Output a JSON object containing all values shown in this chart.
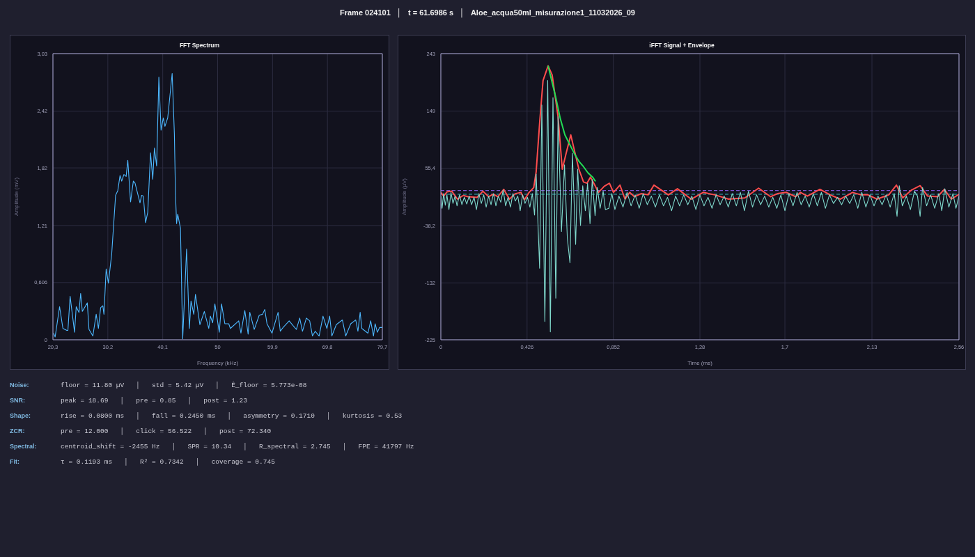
{
  "chart_data": [
    {
      "type": "other",
      "title": "Frame 024101   │   t = 61.6986 s   │   Aloe_acqua50ml_misurazione1_11032026_09"
    },
    {
      "type": "line",
      "title": "FFT Spectrum",
      "xlabel": "Frequency (kHz)",
      "ylabel": "Amplitude (mV)",
      "color": "#4db8ff",
      "marker": "none",
      "grid": true,
      "xlim": [
        20.3,
        79.7
      ],
      "xticks": [
        {
          "value": 20.3,
          "label": "20,3"
        },
        {
          "value": 30.2,
          "label": "30,2"
        },
        {
          "value": 40.1,
          "label": "40,1"
        },
        50,
        {
          "value": 59.9,
          "label": "59,9"
        },
        {
          "value": 69.8,
          "label": "69,8"
        },
        {
          "value": 79.7,
          "label": "79,7"
        }
      ],
      "ylim": [
        0,
        3.03
      ],
      "yticks": [
        0,
        {
          "value": 0.606,
          "label": "0,606"
        },
        {
          "value": 1.21,
          "label": "1,21"
        },
        {
          "value": 1.82,
          "label": "1,82"
        },
        {
          "value": 2.42,
          "label": "2,42"
        },
        {
          "value": 3.03,
          "label": "3,03"
        }
      ],
      "x": [
        20.4,
        20.7,
        21.5,
        22.1,
        22.8,
        23.0,
        23.4,
        24.2,
        24.5,
        25.0,
        25.3,
        25.6,
        26.5,
        26.8,
        27.5,
        28.1,
        28.5,
        28.9,
        29.3,
        29.5,
        29.9,
        30.3,
        30.9,
        31.6,
        32.0,
        32.4,
        32.7,
        33.1,
        33.5,
        33.8,
        34.3,
        34.8,
        35.1,
        36.0,
        36.3,
        36.6,
        37.0,
        37.4,
        37.9,
        38.3,
        38.6,
        39.0,
        39.4,
        39.8,
        40.2,
        40.5,
        41.0,
        41.8,
        42.2,
        42.4,
        42.6,
        42.8,
        43.3,
        43.7,
        44.0,
        44.4,
        44.9,
        45.2,
        45.7,
        46.0,
        46.8,
        47.6,
        48.4,
        48.7,
        49.1,
        49.5,
        50.3,
        50.7,
        51.3,
        52.0,
        52.3,
        53.8,
        54.2,
        54.9,
        55.5,
        55.8,
        56.6,
        57.5,
        58.1,
        58.5,
        58.9,
        59.8,
        60.9,
        61.3,
        61.8,
        62.9,
        63.6,
        64.2,
        64.8,
        65.3,
        66.0,
        66.6,
        67.1,
        67.6,
        68.3,
        69.0,
        69.7,
        70.2,
        70.6,
        71.4,
        72.5,
        73.1,
        74.0,
        74.9,
        75.3,
        75.7,
        76.0,
        77.1,
        77.6,
        78.1,
        78.4,
        78.8,
        79.2,
        79.7
      ],
      "values": [
        0.07,
        0.03,
        0.35,
        0.12,
        0.1,
        0.1,
        0.46,
        0.08,
        0.35,
        0.29,
        0.49,
        0.3,
        0.39,
        0.11,
        0.04,
        0.27,
        0.12,
        0.34,
        0.36,
        0.27,
        0.75,
        0.6,
        0.91,
        1.53,
        1.58,
        1.74,
        1.68,
        1.75,
        1.73,
        1.9,
        1.46,
        1.68,
        1.66,
        1.45,
        1.53,
        1.52,
        1.24,
        1.35,
        1.98,
        1.7,
        2.03,
        1.84,
        2.78,
        2.22,
        2.35,
        2.26,
        2.35,
        2.82,
        2.18,
        1.54,
        1.23,
        1.33,
        1.18,
        0.01,
        0.41,
        0.96,
        0.12,
        0.41,
        0.27,
        0.48,
        0.16,
        0.3,
        0.12,
        0.25,
        0.18,
        0.38,
        0.08,
        0.38,
        0.17,
        0.17,
        0.12,
        0.2,
        0.07,
        0.31,
        0.06,
        0.29,
        0.11,
        0.26,
        0.27,
        0.32,
        0.17,
        0.07,
        0.29,
        0.09,
        0.13,
        0.2,
        0.15,
        0.11,
        0.23,
        0.09,
        0.23,
        0.2,
        0.04,
        0.09,
        0.04,
        0.25,
        0.12,
        0.25,
        0.04,
        0.16,
        0.21,
        0.04,
        0.17,
        0.21,
        0.09,
        0.29,
        0.12,
        0.07,
        0.2,
        0.04,
        0.17,
        0.08,
        0.13,
        0.13
      ]
    },
    {
      "type": "line",
      "title": "iFFT Signal + Envelope",
      "xlabel": "Time (ms)",
      "ylabel": "Amplitude (µV)",
      "marker": "none",
      "grid": true,
      "xlim": [
        0,
        2.56
      ],
      "xticks": [
        0,
        {
          "value": 0.426,
          "label": "0,426"
        },
        {
          "value": 0.852,
          "label": "0,852"
        },
        {
          "value": 1.28,
          "label": "1,28"
        },
        {
          "value": 1.7,
          "label": "1,7"
        },
        {
          "value": 2.13,
          "label": "2,13"
        },
        {
          "value": 2.56,
          "label": "2,56"
        }
      ],
      "ylim": [
        -225,
        243
      ],
      "yticks": [
        -225,
        -132,
        {
          "value": -38.2,
          "label": "-38,2"
        },
        {
          "value": 55.4,
          "label": "55,4"
        },
        149,
        243
      ],
      "ref_lines": [
        {
          "axis": "y",
          "value": 19,
          "color": "#9966ff",
          "line_style": "dashed"
        },
        {
          "axis": "y",
          "value": 13,
          "color": "#33bbbb",
          "line_style": "dashed"
        }
      ],
      "series": [
        {
          "color": "#7fd8cc",
          "x": [
            0,
            0.006,
            0.014,
            0.022,
            0.03,
            0.04,
            0.05,
            0.06,
            0.07,
            0.08,
            0.092,
            0.104,
            0.116,
            0.128,
            0.14,
            0.152,
            0.164,
            0.176,
            0.188,
            0.2,
            0.212,
            0.224,
            0.236,
            0.248,
            0.26,
            0.272,
            0.284,
            0.296,
            0.308,
            0.32,
            0.332,
            0.344,
            0.356,
            0.368,
            0.38,
            0.392,
            0.404,
            0.416,
            0.428,
            0.44,
            0.452,
            0.463,
            0.471,
            0.488,
            0.499,
            0.514,
            0.528,
            0.541,
            0.554,
            0.568,
            0.579,
            0.596,
            0.611,
            0.625,
            0.638,
            0.65,
            0.666,
            0.676,
            0.69,
            0.701,
            0.714,
            0.725,
            0.737,
            0.748,
            0.762,
            0.773,
            0.787,
            0.802,
            0.813,
            0.83,
            0.845,
            0.86,
            0.88,
            0.9,
            0.92,
            0.94,
            0.96,
            0.98,
            1.0,
            1.02,
            1.04,
            1.06,
            1.08,
            1.1,
            1.12,
            1.14,
            1.16,
            1.18,
            1.2,
            1.22,
            1.24,
            1.26,
            1.28,
            1.3,
            1.32,
            1.34,
            1.36,
            1.38,
            1.4,
            1.42,
            1.44,
            1.46,
            1.48,
            1.5,
            1.52,
            1.54,
            1.56,
            1.58,
            1.6,
            1.62,
            1.64,
            1.66,
            1.68,
            1.7,
            1.72,
            1.74,
            1.76,
            1.78,
            1.8,
            1.82,
            1.84,
            1.86,
            1.88,
            1.9,
            1.92,
            1.94,
            1.96,
            1.98,
            2.0,
            2.02,
            2.04,
            2.06,
            2.08,
            2.1,
            2.12,
            2.14,
            2.16,
            2.18,
            2.2,
            2.22,
            2.24,
            2.254,
            2.265,
            2.28,
            2.3,
            2.32,
            2.34,
            2.355,
            2.368,
            2.38,
            2.4,
            2.42,
            2.44,
            2.46,
            2.475,
            2.49,
            2.51,
            2.53,
            2.545,
            2.56
          ],
          "values": [
            10,
            -10,
            14,
            -5,
            12,
            -12,
            16,
            -2,
            10,
            -6,
            12,
            -4,
            8,
            -3,
            10,
            -4,
            8,
            -12,
            14,
            -2,
            12,
            -8,
            10,
            -4,
            14,
            -6,
            10,
            0,
            20,
            -6,
            8,
            -8,
            14,
            2,
            10,
            -14,
            12,
            -2,
            8,
            -8,
            14,
            -21,
            46,
            -108,
            159,
            -195,
            199,
            -212,
            171,
            -157,
            140,
            -48,
            61,
            -59,
            -99,
            80,
            -69,
            54,
            -38,
            27,
            -14,
            31,
            -35,
            37,
            -22,
            24,
            -10,
            18,
            -12,
            -10,
            14,
            -12,
            10,
            -8,
            16,
            -6,
            12,
            -10,
            14,
            -4,
            10,
            -8,
            12,
            -6,
            8,
            -14,
            10,
            -6,
            12,
            -4,
            10,
            -12,
            12,
            -6,
            8,
            -10,
            12,
            -4,
            10,
            -8,
            14,
            -6,
            16,
            -14,
            18,
            -8,
            12,
            -4,
            10,
            -8,
            8,
            -10,
            12,
            -14,
            14,
            -6,
            16,
            -4,
            10,
            -8,
            14,
            -6,
            16,
            -10,
            12,
            -2,
            8,
            -4,
            10,
            -2,
            12,
            -10,
            16,
            -8,
            12,
            -6,
            10,
            -4,
            12,
            -8,
            14,
            -23,
            27,
            -6,
            10,
            -12,
            18,
            10,
            -23,
            24,
            -6,
            12,
            -10,
            14,
            -14,
            22,
            -8,
            14,
            -10,
            10
          ]
        },
        {
          "color": "#ff4d4d",
          "x": [
            0,
            0.014,
            0.031,
            0.054,
            0.082,
            0.111,
            0.134,
            0.179,
            0.208,
            0.236,
            0.259,
            0.282,
            0.311,
            0.339,
            0.368,
            0.396,
            0.413,
            0.436,
            0.459,
            0.471,
            0.488,
            0.505,
            0.53,
            0.55,
            0.579,
            0.6,
            0.619,
            0.642,
            0.659,
            0.682,
            0.705,
            0.722,
            0.739,
            0.756,
            0.779,
            0.807,
            0.833,
            0.853,
            0.885,
            0.91,
            0.933,
            0.956,
            0.99,
            1.024,
            1.053,
            1.124,
            1.169,
            1.237,
            1.296,
            1.354,
            1.422,
            1.502,
            1.57,
            1.629,
            1.663,
            1.708,
            1.753,
            1.777,
            1.811,
            1.873,
            1.924,
            1.973,
            2.034,
            2.076,
            2.11,
            2.155,
            2.213,
            2.251,
            2.282,
            2.326,
            2.368,
            2.405,
            2.454,
            2.488,
            2.522,
            2.56
          ],
          "values": [
            16,
            10,
            17,
            18,
            5,
            11,
            9,
            8,
            18,
            9,
            13,
            9,
            21,
            5,
            14,
            16,
            4,
            16,
            24,
            50,
            129,
            199,
            223,
            208,
            140,
            54,
            80,
            110,
            86,
            54,
            33,
            31,
            41,
            31,
            16,
            26,
            31,
            16,
            28,
            5,
            16,
            9,
            14,
            12,
            28,
            12,
            22,
            5,
            16,
            12,
            5,
            7,
            23,
            9,
            14,
            16,
            9,
            16,
            10,
            21,
            12,
            5,
            16,
            12,
            12,
            5,
            12,
            28,
            7,
            20,
            27,
            10,
            9,
            21,
            5,
            13
          ]
        },
        {
          "color": "#22dd55",
          "x": [
            0.53,
            0.568,
            0.59,
            0.613,
            0.636,
            0.659,
            0.682,
            0.705,
            0.727,
            0.75,
            0.764
          ],
          "values": [
            223,
            171,
            137,
            110,
            95,
            80,
            67,
            58,
            48,
            41,
            34
          ]
        }
      ]
    },
    {
      "type": "other",
      "annotations": [
        "Noise:",
        "floor = 11.80 µV   │   std = 5.42 µV   │   Ê_floor = 5.773e-08",
        "SNR:",
        "peak = 18.69   │   pre = 0.85   │   post = 1.23",
        "Shape:",
        "rise = 0.0800 ms   │   fall = 0.2450 ms   │   asymmetry = 0.1710   │   kurtosis = 0.53",
        "ZCR:",
        "pre = 12.000   │   click = 56.522   │   post = 72.340",
        "Spectral:",
        "centroid_shift = -2455 Hz   │   SPR = 10.34   │   R_spectral = 2.745   │   FPE = 41797 Hz",
        "Fit:",
        "τ = 0.1193 ms   │   R² = 0.7342   │   coverage = 0.745"
      ]
    }
  ]
}
